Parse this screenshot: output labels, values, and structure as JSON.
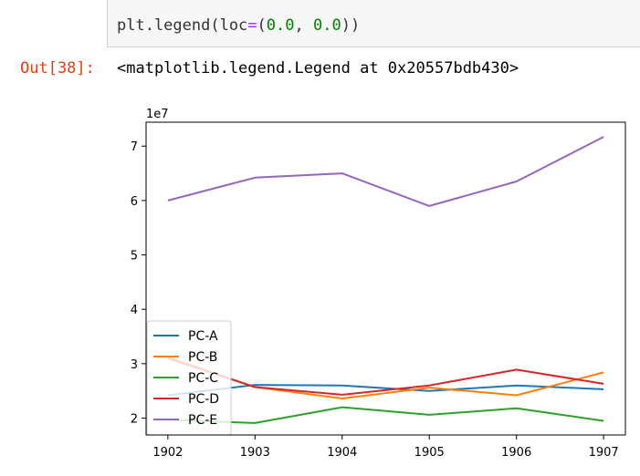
{
  "code_cell": {
    "parts": [
      "plt.legend(loc",
      "=",
      "(",
      "0.0",
      ", ",
      "0.0",
      "))"
    ]
  },
  "output": {
    "prompt": "Out[38]:",
    "text": "<matplotlib.legend.Legend at 0x20557bdb430>"
  },
  "chart_data": {
    "type": "line",
    "x": [
      1902,
      1903,
      1904,
      1905,
      1906,
      1907
    ],
    "xlim": [
      1901.75,
      1907.25
    ],
    "ylim": [
      1.69,
      7.44
    ],
    "y_scale_label": "1e7",
    "yticks": [
      2,
      3,
      4,
      5,
      6,
      7
    ],
    "legend_loc": "lower-left",
    "series": [
      {
        "name": "PC-A",
        "color": "#1f77b4",
        "values": [
          2.42,
          2.61,
          2.6,
          2.5,
          2.6,
          2.53
        ]
      },
      {
        "name": "PC-B",
        "color": "#ff7f0e",
        "values": [
          3.12,
          2.57,
          2.36,
          2.56,
          2.42,
          2.84
        ]
      },
      {
        "name": "PC-C",
        "color": "#2ca02c",
        "values": [
          1.97,
          1.91,
          2.2,
          2.06,
          2.18,
          1.95
        ]
      },
      {
        "name": "PC-D",
        "color": "#d62728",
        "values": [
          3.1,
          2.57,
          2.43,
          2.6,
          2.89,
          2.63
        ]
      },
      {
        "name": "PC-E",
        "color": "#9467bd",
        "values": [
          6.0,
          6.42,
          6.5,
          5.9,
          6.35,
          7.17
        ]
      }
    ]
  }
}
